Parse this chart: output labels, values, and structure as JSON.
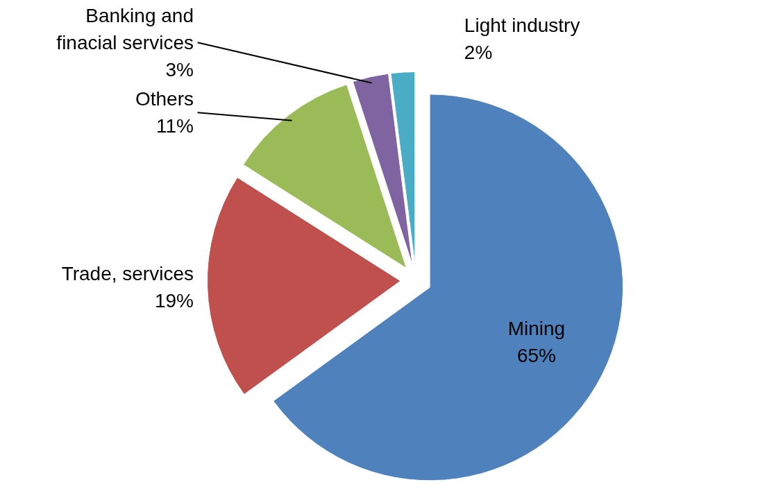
{
  "chart_data": {
    "type": "pie",
    "categories": [
      "Mining",
      "Trade, services",
      "Others",
      "Banking and finacial services",
      "Light industry"
    ],
    "values": [
      65,
      19,
      11,
      3,
      2
    ],
    "colors": [
      "#4f81bd",
      "#c0504d",
      "#9bbb59",
      "#8064a2",
      "#4bacc6"
    ],
    "value_labels": [
      "65%",
      "19%",
      "11%",
      "3%",
      "2%"
    ],
    "legend": false
  }
}
